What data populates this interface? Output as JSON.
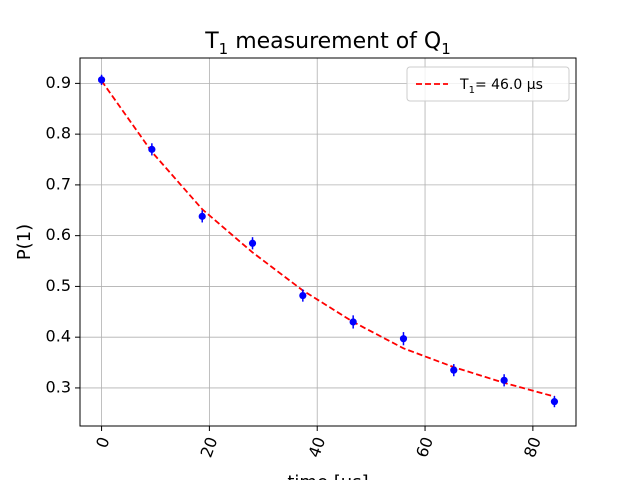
{
  "chart_data": {
    "type": "scatter",
    "title": {
      "main": "T",
      "main_sub": "1",
      "middle": " measurement of Q",
      "end_sub": "1"
    },
    "xlabel": "time [μs]",
    "ylabel": "P(1)",
    "xlim": [
      -4,
      88
    ],
    "ylim": [
      0.225,
      0.95
    ],
    "xticks": [
      0,
      20,
      40,
      60,
      80
    ],
    "xtick_labels": [
      "0",
      "20",
      "40",
      "60",
      "80"
    ],
    "yticks": [
      0.3,
      0.4,
      0.5,
      0.6,
      0.7,
      0.8,
      0.9
    ],
    "ytick_labels": [
      "0.3",
      "0.4",
      "0.5",
      "0.6",
      "0.7",
      "0.8",
      "0.9"
    ],
    "grid": true,
    "legend_position": "top-right",
    "series": [
      {
        "kind": "points",
        "color": "#0000ff",
        "x": [
          0,
          9.33,
          18.67,
          28,
          37.33,
          46.67,
          56,
          65.33,
          74.67,
          84
        ],
        "y": [
          0.907,
          0.77,
          0.638,
          0.585,
          0.482,
          0.43,
          0.397,
          0.335,
          0.315,
          0.273
        ],
        "yerr": [
          0.01,
          0.012,
          0.012,
          0.012,
          0.012,
          0.013,
          0.013,
          0.012,
          0.012,
          0.011
        ]
      },
      {
        "kind": "fit-line",
        "name": {
          "prefix": "T",
          "sub": "1",
          "rest": "= 46.0 μs"
        },
        "color": "#ff0000",
        "dash": "dashed",
        "x": [
          0,
          9.33,
          18.67,
          28,
          37.33,
          46.67,
          56,
          65.33,
          74.67,
          84
        ],
        "y": [
          0.905,
          0.765,
          0.652,
          0.567,
          0.492,
          0.43,
          0.378,
          0.341,
          0.31,
          0.283
        ]
      }
    ]
  }
}
